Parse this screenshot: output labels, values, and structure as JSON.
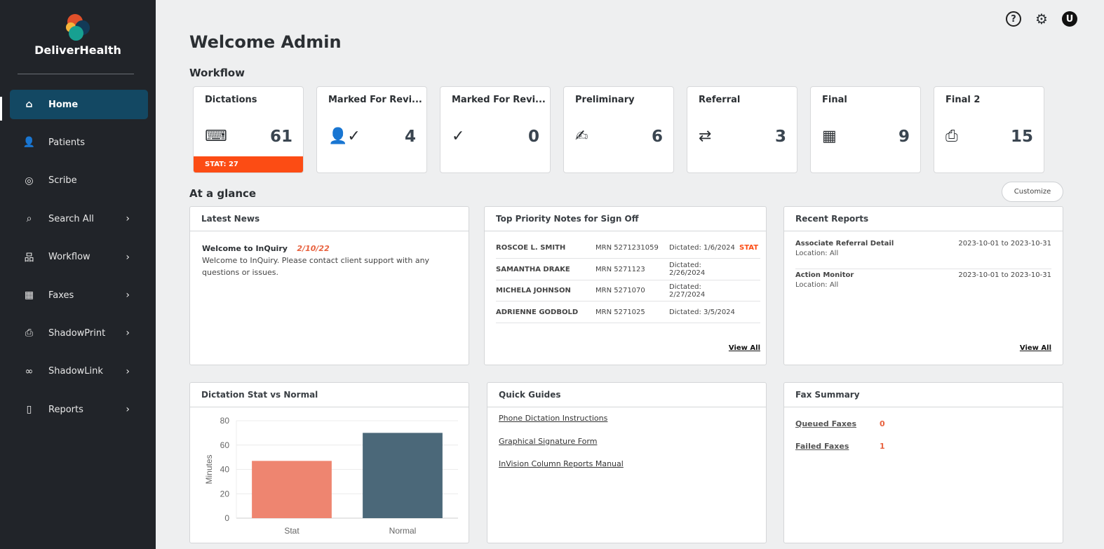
{
  "brand": "DeliverHealth",
  "sidebar": {
    "items": [
      {
        "label": "Home",
        "icon": "home-icon",
        "glyph": "⌂",
        "chevron": false
      },
      {
        "label": "Patients",
        "icon": "user-icon",
        "glyph": "👤",
        "chevron": false
      },
      {
        "label": "Scribe",
        "icon": "scribe-icon",
        "glyph": "◎",
        "chevron": false
      },
      {
        "label": "Search All",
        "icon": "search-icon",
        "glyph": "⌕",
        "chevron": true
      },
      {
        "label": "Workflow",
        "icon": "workflow-icon",
        "glyph": "品",
        "chevron": true
      },
      {
        "label": "Faxes",
        "icon": "fax-icon",
        "glyph": "▦",
        "chevron": true
      },
      {
        "label": "ShadowPrint",
        "icon": "printer-icon",
        "glyph": "⎙",
        "chevron": true
      },
      {
        "label": "ShadowLink",
        "icon": "link-icon",
        "glyph": "∞",
        "chevron": true
      },
      {
        "label": "Reports",
        "icon": "document-icon",
        "glyph": "▯",
        "chevron": true
      }
    ]
  },
  "header": {
    "avatar": "U",
    "help": "?",
    "settings": "⚙"
  },
  "title": "Welcome Admin",
  "workflow": {
    "heading": "Workflow",
    "cards": [
      {
        "title": "Dictations",
        "count": "61",
        "icon": "keyboard-icon",
        "glyph": "⌨",
        "stat": "STAT: 27"
      },
      {
        "title": "Marked For Revi...",
        "count": "4",
        "icon": "user-check-icon",
        "glyph": "👤✓"
      },
      {
        "title": "Marked For Revi...",
        "count": "0",
        "icon": "double-check-icon",
        "glyph": "✓"
      },
      {
        "title": "Preliminary",
        "count": "6",
        "icon": "document-sign-icon",
        "glyph": "✍"
      },
      {
        "title": "Referral",
        "count": "3",
        "icon": "referral-icon",
        "glyph": "⇄"
      },
      {
        "title": "Final",
        "count": "9",
        "icon": "fax-icon",
        "glyph": "▦"
      },
      {
        "title": "Final 2",
        "count": "15",
        "icon": "printer-icon",
        "glyph": "⎙"
      }
    ]
  },
  "glance": {
    "heading": "At a glance",
    "customize": "Customize"
  },
  "news": {
    "title": "Latest News",
    "headline": "Welcome to InQuiry",
    "date": "2/10/22",
    "body": "Welcome to InQuiry. Please contact client support with any questions or issues."
  },
  "priority": {
    "title": "Top Priority Notes for Sign Off",
    "rows": [
      {
        "name": "ROSCOE L. SMITH",
        "mrn": "MRN 5271231059",
        "dictated": "Dictated: 1/6/2024",
        "flag": "STAT"
      },
      {
        "name": "SAMANTHA DRAKE",
        "mrn": "MRN 5271123",
        "dictated": "Dictated: 2/26/2024",
        "flag": ""
      },
      {
        "name": "MICHELA JOHNSON",
        "mrn": "MRN 5271070",
        "dictated": "Dictated: 2/27/2024",
        "flag": ""
      },
      {
        "name": "ADRIENNE GODBOLD",
        "mrn": "MRN 5271025",
        "dictated": "Dictated: 3/5/2024",
        "flag": ""
      }
    ],
    "view_all": "View All"
  },
  "reports": {
    "title": "Recent Reports",
    "rows": [
      {
        "name": "Associate Referral Detail",
        "location": "Location: All",
        "range": "2023-10-01 to 2023-10-31"
      },
      {
        "name": "Action Monitor",
        "location": "Location: All",
        "range": "2023-10-01 to 2023-10-31"
      }
    ],
    "view_all": "View All"
  },
  "dictation_chart": {
    "title": "Dictation Stat vs Normal"
  },
  "chart_data": {
    "type": "bar",
    "categories": [
      "Stat",
      "Normal"
    ],
    "values": [
      47,
      70
    ],
    "colors": [
      "#ee8570",
      "#4b6879"
    ],
    "ylabel": "Minutes",
    "ylim": [
      0,
      80
    ],
    "yticks": [
      0,
      20,
      40,
      60,
      80
    ],
    "grid": true
  },
  "guides": {
    "title": "Quick Guides",
    "links": [
      "Phone Dictation Instructions",
      "Graphical Signature Form",
      "InVision Column Reports Manual"
    ]
  },
  "fax": {
    "title": "Fax Summary",
    "rows": [
      {
        "label": "Queued Faxes",
        "value": "0"
      },
      {
        "label": "Failed Faxes",
        "value": "1"
      }
    ]
  },
  "colors": {
    "sidebar": "#212429",
    "active": "#134863",
    "stat": "#fc4c14",
    "accent": "#e8623f"
  }
}
